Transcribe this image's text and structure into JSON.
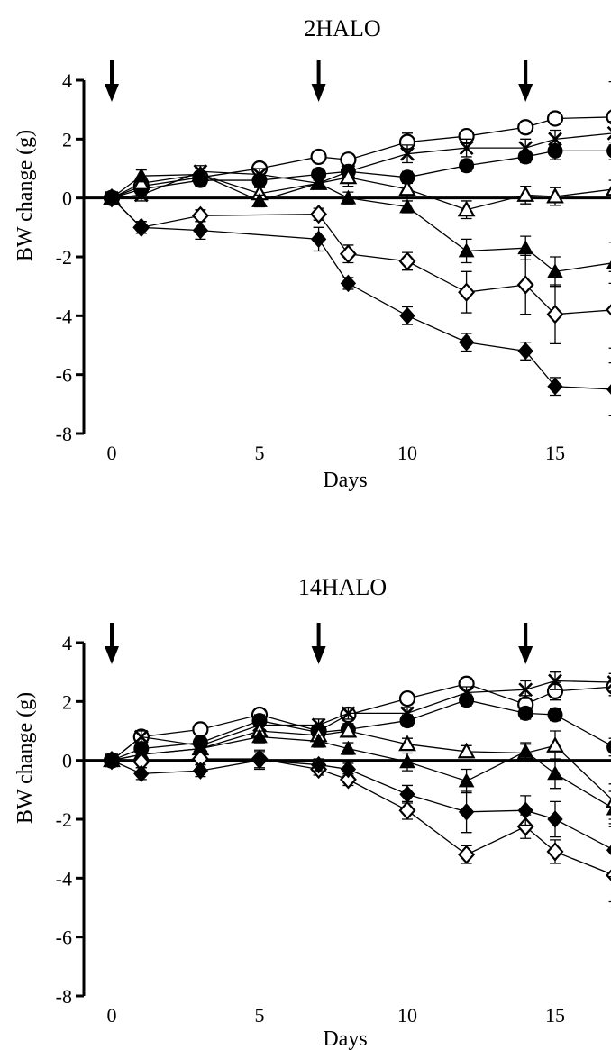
{
  "chart_data": [
    {
      "type": "line",
      "title": "2HALO",
      "xlabel": "Days",
      "ylabel": "BW change (g)",
      "xlim": [
        -1.2,
        17
      ],
      "ylim": [
        -8,
        4
      ],
      "xticks": [
        0,
        5,
        10,
        15
      ],
      "yticks": [
        4,
        2,
        0,
        -2,
        -4,
        -6,
        -8
      ],
      "ytick_labels": [
        "4",
        "2",
        "0",
        "-2",
        "-4",
        "-6",
        "-8"
      ],
      "arrows_at_day": [
        0,
        7,
        14
      ],
      "zero_line": true,
      "series": [
        {
          "marker": "open-circle",
          "x": [
            0,
            1,
            3,
            5,
            7,
            8,
            10,
            12,
            14,
            15,
            17
          ],
          "y": [
            0.0,
            0.4,
            0.7,
            1.0,
            1.4,
            1.3,
            1.9,
            2.1,
            2.4,
            2.7,
            2.75
          ],
          "err": [
            0.1,
            0.2,
            0.2,
            0.2,
            0.2,
            0.2,
            0.3,
            0.2,
            0.2,
            0.2,
            1.2
          ]
        },
        {
          "marker": "cross",
          "x": [
            0,
            1,
            3,
            5,
            7,
            8,
            10,
            12,
            14,
            15,
            17
          ],
          "y": [
            0.0,
            0.1,
            0.9,
            0.8,
            0.5,
            0.9,
            1.5,
            1.7,
            1.7,
            2.0,
            2.2
          ],
          "err": [
            0.1,
            0.2,
            0.2,
            0.2,
            0.2,
            0.2,
            0.3,
            0.3,
            0.3,
            0.3,
            0.4
          ]
        },
        {
          "marker": "filled-circle",
          "x": [
            0,
            1,
            3,
            5,
            7,
            8,
            10,
            12,
            14,
            15,
            17
          ],
          "y": [
            0.0,
            0.3,
            0.6,
            0.6,
            0.8,
            0.9,
            0.7,
            1.1,
            1.4,
            1.6,
            1.6
          ],
          "err": [
            0.1,
            0.2,
            0.2,
            0.2,
            0.2,
            0.2,
            0.2,
            0.2,
            0.2,
            0.3,
            0.3
          ]
        },
        {
          "marker": "open-triangle",
          "x": [
            0,
            1,
            3,
            5,
            7,
            8,
            10,
            12,
            14,
            15,
            17
          ],
          "y": [
            0.0,
            0.5,
            0.8,
            0.15,
            0.5,
            0.7,
            0.3,
            -0.4,
            0.1,
            0.05,
            0.3
          ],
          "err": [
            0.1,
            0.2,
            0.2,
            0.2,
            0.2,
            0.3,
            0.3,
            0.3,
            0.3,
            0.3,
            0.3
          ]
        },
        {
          "marker": "filled-triangle",
          "x": [
            0,
            1,
            3,
            5,
            7,
            8,
            10,
            12,
            14,
            15,
            17
          ],
          "y": [
            0.0,
            0.75,
            0.8,
            -0.1,
            0.5,
            0.0,
            -0.3,
            -1.8,
            -1.7,
            -2.5,
            -2.2
          ],
          "err": [
            0.1,
            0.2,
            0.2,
            0.2,
            0.2,
            0.2,
            0.2,
            0.4,
            0.4,
            0.5,
            0.7
          ]
        },
        {
          "marker": "open-diamond",
          "x": [
            0,
            1,
            3,
            5,
            7,
            8,
            10,
            12,
            14,
            15,
            17
          ],
          "y": [
            0.0,
            -1.0,
            -0.6,
            null,
            -0.55,
            -1.9,
            -2.15,
            -3.2,
            -2.95,
            -3.95,
            -3.8
          ],
          "err": [
            0.1,
            0.2,
            0.2,
            null,
            0.2,
            0.3,
            0.3,
            0.7,
            1.0,
            1.0,
            1.3
          ]
        },
        {
          "marker": "filled-diamond",
          "x": [
            0,
            1,
            3,
            5,
            7,
            8,
            10,
            12,
            14,
            15,
            17
          ],
          "y": [
            0.0,
            -1.0,
            -1.1,
            null,
            -1.4,
            -2.9,
            -4.0,
            -4.9,
            -5.2,
            -6.4,
            -6.5
          ],
          "err": [
            0.1,
            0.2,
            0.3,
            null,
            0.4,
            0.2,
            0.3,
            0.3,
            0.3,
            0.3,
            0.9
          ]
        }
      ]
    },
    {
      "type": "line",
      "title": "14HALO",
      "xlabel": "Days",
      "ylabel": "BW change (g)",
      "xlim": [
        -1.2,
        17
      ],
      "ylim": [
        -8,
        4
      ],
      "xticks": [
        0,
        5,
        10,
        15
      ],
      "yticks": [
        4,
        2,
        0,
        -2,
        -4,
        -6,
        -8
      ],
      "ytick_labels": [
        "4",
        "2",
        "0",
        "-2",
        "-4",
        "-6",
        "-8"
      ],
      "arrows_at_day": [
        0,
        7,
        14
      ],
      "zero_line": true,
      "series": [
        {
          "marker": "open-circle",
          "x": [
            0,
            1,
            3,
            5,
            7,
            8,
            10,
            12,
            14,
            15,
            17
          ],
          "y": [
            0.0,
            0.8,
            1.05,
            1.55,
            1.0,
            1.55,
            2.1,
            2.6,
            1.9,
            2.35,
            2.5
          ],
          "err": [
            0.1,
            0.2,
            0.2,
            0.2,
            0.2,
            0.2,
            0.2,
            0.2,
            0.3,
            0.3,
            0.3
          ]
        },
        {
          "marker": "cross",
          "x": [
            0,
            1,
            3,
            5,
            7,
            8,
            10,
            12,
            14,
            15,
            17
          ],
          "y": [
            0.0,
            0.8,
            0.5,
            1.2,
            1.2,
            1.6,
            1.6,
            2.3,
            2.4,
            2.7,
            2.65
          ],
          "err": [
            0.1,
            0.2,
            0.2,
            0.2,
            0.2,
            0.2,
            0.2,
            0.2,
            0.3,
            0.3,
            0.3
          ]
        },
        {
          "marker": "filled-circle",
          "x": [
            0,
            1,
            3,
            5,
            7,
            8,
            10,
            12,
            14,
            15,
            17
          ],
          "y": [
            0.0,
            0.4,
            0.6,
            1.35,
            0.95,
            1.05,
            1.35,
            2.05,
            1.6,
            1.55,
            0.45
          ],
          "err": [
            0.1,
            0.2,
            0.2,
            0.2,
            0.2,
            0.2,
            0.2,
            0.2,
            0.2,
            0.2,
            0.3
          ]
        },
        {
          "marker": "open-triangle",
          "x": [
            0,
            1,
            3,
            5,
            7,
            8,
            10,
            12,
            14,
            15,
            17
          ],
          "y": [
            0.0,
            0.2,
            0.4,
            1.0,
            0.85,
            1.0,
            0.55,
            0.3,
            0.25,
            0.5,
            -1.4
          ],
          "err": [
            0.1,
            0.2,
            0.2,
            0.2,
            0.2,
            0.2,
            0.2,
            0.2,
            0.3,
            0.5,
            0.6
          ]
        },
        {
          "marker": "filled-triangle",
          "x": [
            0,
            1,
            3,
            5,
            7,
            8,
            10,
            12,
            14,
            15,
            17
          ],
          "y": [
            0.0,
            0.2,
            0.4,
            0.8,
            0.65,
            0.4,
            -0.05,
            -0.7,
            0.3,
            -0.45,
            -1.65
          ],
          "err": [
            0.1,
            0.2,
            0.2,
            0.2,
            0.2,
            0.2,
            0.3,
            0.4,
            0.3,
            0.5,
            0.6
          ]
        },
        {
          "marker": "open-diamond",
          "x": [
            0,
            1,
            3,
            5,
            7,
            8,
            10,
            12,
            14,
            15,
            17
          ],
          "y": [
            0.0,
            -0.05,
            0.05,
            0.05,
            -0.3,
            -0.65,
            -1.7,
            -3.2,
            -2.25,
            -3.1,
            -3.9
          ],
          "err": [
            0.1,
            0.2,
            0.2,
            0.3,
            0.2,
            0.2,
            0.3,
            0.3,
            0.4,
            0.4,
            0.9
          ]
        },
        {
          "marker": "filled-diamond",
          "x": [
            0,
            1,
            3,
            5,
            7,
            8,
            10,
            12,
            14,
            15,
            17
          ],
          "y": [
            0.0,
            -0.45,
            -0.35,
            0.0,
            -0.15,
            -0.3,
            -1.15,
            -1.75,
            -1.7,
            -2.0,
            -3.05
          ],
          "err": [
            0.1,
            0.2,
            0.2,
            0.3,
            0.2,
            0.2,
            0.3,
            0.7,
            0.5,
            0.6,
            0.9
          ]
        }
      ]
    }
  ]
}
